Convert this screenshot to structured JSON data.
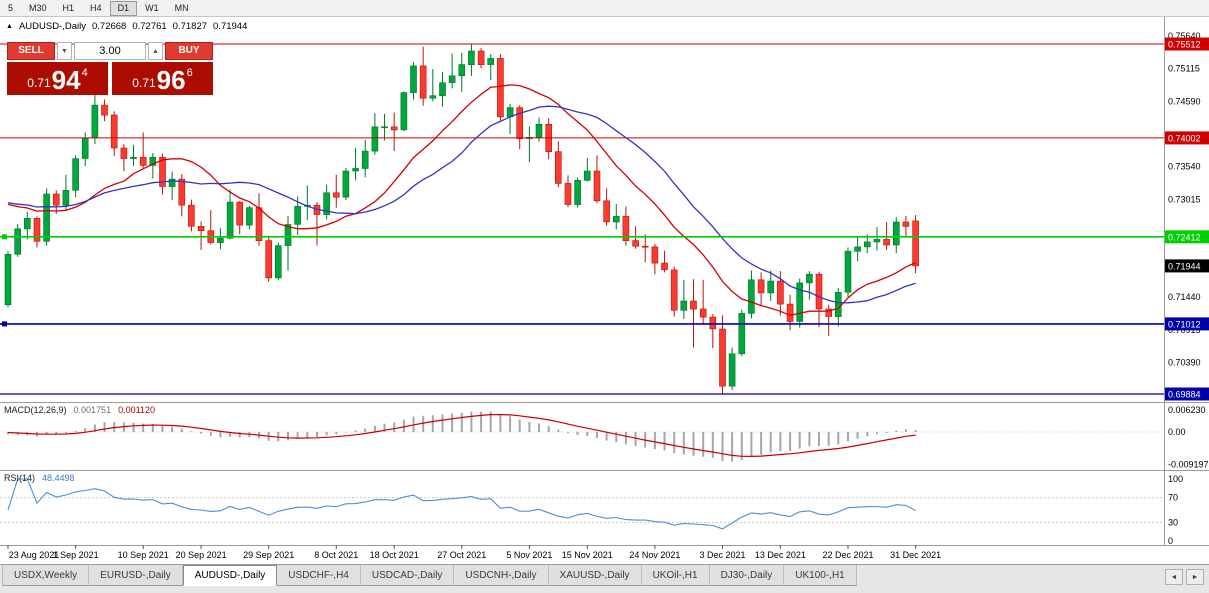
{
  "toolbar": {
    "timeframes": [
      "5",
      "M30",
      "H1",
      "H4",
      "D1",
      "W1",
      "MN"
    ],
    "active": "D1"
  },
  "chart": {
    "collapse_glyph": "▲",
    "symbol_label": "AUDUSD-,Daily",
    "ohlc": {
      "open": "0.72668",
      "high": "0.72761",
      "low": "0.71827",
      "close": "0.71944"
    },
    "y_axis_labels": [
      0.7564,
      0.75115,
      0.7459,
      0.7354,
      0.73015,
      0.7144,
      0.70915,
      0.7039
    ],
    "price_tags": [
      {
        "price": 0.75512,
        "bg": "#d10000",
        "fg": "#ffffff"
      },
      {
        "price": 0.74002,
        "bg": "#d10000",
        "fg": "#ffffff"
      },
      {
        "price": 0.72412,
        "bg": "#00ce00",
        "fg": "#ffffff"
      },
      {
        "price": 0.71944,
        "bg": "#000000",
        "fg": "#ffffff"
      },
      {
        "price": 0.71012,
        "bg": "#0000a8",
        "fg": "#ffffff"
      },
      {
        "price": 0.69884,
        "bg": "#0000a8",
        "fg": "#ffffff"
      }
    ],
    "h_lines": [
      {
        "price": 0.75512,
        "color": "#cc0000",
        "width": 1
      },
      {
        "price": 0.74002,
        "color": "#cc0000",
        "width": 1
      },
      {
        "price": 0.72412,
        "color": "#00ce00",
        "width": 1.6,
        "handle": true
      },
      {
        "price": 0.71012,
        "color": "#0000a8",
        "width": 1.6,
        "handle": true
      },
      {
        "price": 0.69884,
        "color": "#0000a8",
        "width": 1.2
      }
    ],
    "x_ticks": [
      {
        "i": 0,
        "label": "23 Aug 2021"
      },
      {
        "i": 7,
        "label": "1 Sep 2021"
      },
      {
        "i": 14,
        "label": "10 Sep 2021"
      },
      {
        "i": 20,
        "label": "20 Sep 2021"
      },
      {
        "i": 27,
        "label": "29 Sep 2021"
      },
      {
        "i": 34,
        "label": "8 Oct 2021"
      },
      {
        "i": 40,
        "label": "18 Oct 2021"
      },
      {
        "i": 47,
        "label": "27 Oct 2021"
      },
      {
        "i": 54,
        "label": "5 Nov 2021"
      },
      {
        "i": 60,
        "label": "15 Nov 2021"
      },
      {
        "i": 67,
        "label": "24 Nov 2021"
      },
      {
        "i": 74,
        "label": "3 Dec 2021"
      },
      {
        "i": 80,
        "label": "13 Dec 2021"
      },
      {
        "i": 87,
        "label": "22 Dec 2021"
      },
      {
        "i": 94,
        "label": "31 Dec 2021"
      }
    ]
  },
  "trade": {
    "sell_label": "SELL",
    "buy_label": "BUY",
    "volume": "3.00",
    "volume_down_glyph": "▼",
    "volume_up_glyph": "▲",
    "sell_price": {
      "prefix": "0.71",
      "pips": "94",
      "pipette": "4"
    },
    "buy_price": {
      "prefix": "0.71",
      "pips": "96",
      "pipette": "6"
    }
  },
  "indicators": {
    "macd": {
      "label": "MACD(12,26,9)",
      "value_main": "0.001751",
      "value_signal": "0.001120",
      "axis_labels": [
        "0.006230",
        "0.00",
        "-0.009197"
      ],
      "params": [
        12,
        26,
        9
      ]
    },
    "rsi": {
      "label": "RSI(14)",
      "value": "48.4498",
      "axis_labels": [
        100,
        70,
        30,
        0
      ],
      "period": 14,
      "levels": [
        70,
        30
      ]
    },
    "sma_fast_period": 13,
    "sma_slow_period": 21
  },
  "theme": {
    "candle_up": "#00a73c",
    "candle_up_border": "#00762a",
    "candle_down": "#fb3b30",
    "candle_down_border": "#b7150b",
    "ma_fast": "#d40000",
    "ma_slow": "#3434c4",
    "macd_hist": "#a6a6a6",
    "macd_signal": "#cc0000",
    "rsi_line": "#4a90d9",
    "axis_line": "#9a9a9a"
  },
  "tabs": {
    "items": [
      "USDX,Weekly",
      "EURUSD-,Daily",
      "AUDUSD-,Daily",
      "USDCHF-,H4",
      "USDCAD-,Daily",
      "USDCNH-,Daily",
      "XAUUSD-,Daily",
      "UKOil-,H1",
      "DJ30-,Daily",
      "UK100-,H1"
    ],
    "active": "AUDUSD-,Daily",
    "nav_left": "◄",
    "nav_right": "►"
  },
  "chart_data": {
    "type": "candlestick",
    "symbol": "AUDUSD",
    "timeframe": "Daily",
    "y_range": [
      0.6975,
      0.759
    ],
    "columns": [
      "date",
      "open",
      "high",
      "low",
      "close"
    ],
    "candles": [
      [
        "2021.08.23",
        0.7132,
        0.7218,
        0.7128,
        0.7213
      ],
      [
        "2021.08.24",
        0.7213,
        0.7262,
        0.7209,
        0.7254
      ],
      [
        "2021.08.25",
        0.7254,
        0.7281,
        0.7237,
        0.7271
      ],
      [
        "2021.08.26",
        0.7271,
        0.7274,
        0.7224,
        0.7234
      ],
      [
        "2021.08.27",
        0.7234,
        0.7319,
        0.7227,
        0.731
      ],
      [
        "2021.08.30",
        0.731,
        0.7316,
        0.7278,
        0.7292
      ],
      [
        "2021.08.31",
        0.7292,
        0.7341,
        0.7285,
        0.7316
      ],
      [
        "2021.09.01",
        0.7316,
        0.7372,
        0.7305,
        0.7367
      ],
      [
        "2021.09.02",
        0.7367,
        0.7409,
        0.7355,
        0.74
      ],
      [
        "2021.09.03",
        0.74,
        0.7478,
        0.739,
        0.7453
      ],
      [
        "2021.09.06",
        0.7453,
        0.7462,
        0.7427,
        0.7437
      ],
      [
        "2021.09.07",
        0.7437,
        0.7443,
        0.7371,
        0.7384
      ],
      [
        "2021.09.08",
        0.7384,
        0.739,
        0.7347,
        0.7367
      ],
      [
        "2021.09.09",
        0.7367,
        0.7389,
        0.7355,
        0.7369
      ],
      [
        "2021.09.10",
        0.7369,
        0.7409,
        0.7352,
        0.7356
      ],
      [
        "2021.09.13",
        0.7356,
        0.7376,
        0.7335,
        0.7369
      ],
      [
        "2021.09.14",
        0.7369,
        0.7375,
        0.7309,
        0.7322
      ],
      [
        "2021.09.15",
        0.7322,
        0.7346,
        0.73,
        0.7334
      ],
      [
        "2021.09.16",
        0.7334,
        0.7342,
        0.7274,
        0.7292
      ],
      [
        "2021.09.17",
        0.7292,
        0.7301,
        0.725,
        0.7258
      ],
      [
        "2021.09.20",
        0.7258,
        0.7266,
        0.722,
        0.7251
      ],
      [
        "2021.09.21",
        0.7251,
        0.7284,
        0.7229,
        0.7232
      ],
      [
        "2021.09.22",
        0.7232,
        0.7255,
        0.7221,
        0.7239
      ],
      [
        "2021.09.23",
        0.7239,
        0.7317,
        0.7237,
        0.7297
      ],
      [
        "2021.09.24",
        0.7297,
        0.7299,
        0.7245,
        0.726
      ],
      [
        "2021.09.27",
        0.726,
        0.7291,
        0.7253,
        0.7288
      ],
      [
        "2021.09.28",
        0.7288,
        0.7311,
        0.7227,
        0.7235
      ],
      [
        "2021.09.29",
        0.7235,
        0.7243,
        0.7169,
        0.7175
      ],
      [
        "2021.09.30",
        0.7175,
        0.7232,
        0.7171,
        0.7227
      ],
      [
        "2021.10.01",
        0.7227,
        0.7275,
        0.7187,
        0.7261
      ],
      [
        "2021.10.04",
        0.7261,
        0.7306,
        0.7244,
        0.729
      ],
      [
        "2021.10.05",
        0.729,
        0.7324,
        0.7268,
        0.7292
      ],
      [
        "2021.10.06",
        0.7292,
        0.7297,
        0.7227,
        0.7277
      ],
      [
        "2021.10.07",
        0.7277,
        0.7325,
        0.7269,
        0.7312
      ],
      [
        "2021.10.08",
        0.7312,
        0.7341,
        0.7288,
        0.7305
      ],
      [
        "2021.10.11",
        0.7305,
        0.7352,
        0.73,
        0.7347
      ],
      [
        "2021.10.12",
        0.7347,
        0.7384,
        0.7332,
        0.7351
      ],
      [
        "2021.10.13",
        0.7351,
        0.7397,
        0.7337,
        0.7379
      ],
      [
        "2021.10.14",
        0.7379,
        0.744,
        0.7373,
        0.7418
      ],
      [
        "2021.10.15",
        0.7418,
        0.7439,
        0.7396,
        0.7418
      ],
      [
        "2021.10.18",
        0.7418,
        0.7441,
        0.7379,
        0.7413
      ],
      [
        "2021.10.19",
        0.7413,
        0.7475,
        0.7411,
        0.7473
      ],
      [
        "2021.10.20",
        0.7473,
        0.7522,
        0.7462,
        0.7516
      ],
      [
        "2021.10.21",
        0.7516,
        0.7547,
        0.7452,
        0.7464
      ],
      [
        "2021.10.22",
        0.7464,
        0.7511,
        0.7459,
        0.7468
      ],
      [
        "2021.10.25",
        0.7468,
        0.7506,
        0.745,
        0.7489
      ],
      [
        "2021.10.26",
        0.7489,
        0.7536,
        0.748,
        0.75
      ],
      [
        "2021.10.27",
        0.75,
        0.7537,
        0.7474,
        0.7518
      ],
      [
        "2021.10.28",
        0.7518,
        0.7551,
        0.75,
        0.754
      ],
      [
        "2021.10.29",
        0.754,
        0.7545,
        0.7512,
        0.7518
      ],
      [
        "2021.11.01",
        0.7518,
        0.7535,
        0.7493,
        0.7528
      ],
      [
        "2021.11.02",
        0.7528,
        0.7535,
        0.7428,
        0.7434
      ],
      [
        "2021.11.03",
        0.7434,
        0.7455,
        0.7406,
        0.7449
      ],
      [
        "2021.11.04",
        0.7449,
        0.7453,
        0.7382,
        0.7399
      ],
      [
        "2021.11.05",
        0.7399,
        0.7419,
        0.7361,
        0.7401
      ],
      [
        "2021.11.08",
        0.7401,
        0.7433,
        0.7394,
        0.7422
      ],
      [
        "2021.11.09",
        0.7422,
        0.7432,
        0.7366,
        0.7378
      ],
      [
        "2021.11.10",
        0.7378,
        0.7395,
        0.7321,
        0.7327
      ],
      [
        "2021.11.11",
        0.7327,
        0.734,
        0.7289,
        0.7293
      ],
      [
        "2021.11.12",
        0.7293,
        0.7337,
        0.7288,
        0.7332
      ],
      [
        "2021.11.15",
        0.7332,
        0.7368,
        0.733,
        0.7347
      ],
      [
        "2021.11.16",
        0.7347,
        0.7372,
        0.7295,
        0.7299
      ],
      [
        "2021.11.17",
        0.7299,
        0.7319,
        0.7259,
        0.7265
      ],
      [
        "2021.11.18",
        0.7265,
        0.7294,
        0.7253,
        0.7274
      ],
      [
        "2021.11.19",
        0.7274,
        0.729,
        0.7227,
        0.7235
      ],
      [
        "2021.11.22",
        0.7235,
        0.7258,
        0.7222,
        0.7226
      ],
      [
        "2021.11.23",
        0.7226,
        0.7245,
        0.72,
        0.7225
      ],
      [
        "2021.11.24",
        0.7225,
        0.723,
        0.7181,
        0.7199
      ],
      [
        "2021.11.25",
        0.7199,
        0.7219,
        0.7184,
        0.7188
      ],
      [
        "2021.11.26",
        0.7188,
        0.7193,
        0.7113,
        0.7123
      ],
      [
        "2021.11.29",
        0.7123,
        0.7172,
        0.7109,
        0.7138
      ],
      [
        "2021.11.30",
        0.7138,
        0.7173,
        0.7063,
        0.7125
      ],
      [
        "2021.12.01",
        0.7125,
        0.7172,
        0.71,
        0.7112
      ],
      [
        "2021.12.02",
        0.7112,
        0.7117,
        0.7062,
        0.7093
      ],
      [
        "2021.12.03",
        0.7093,
        0.7115,
        0.6988,
        0.7001
      ],
      [
        "2021.12.06",
        0.7001,
        0.7063,
        0.6995,
        0.7053
      ],
      [
        "2021.12.07",
        0.7053,
        0.7124,
        0.7049,
        0.7118
      ],
      [
        "2021.12.08",
        0.7118,
        0.7187,
        0.711,
        0.7172
      ],
      [
        "2021.12.09",
        0.7172,
        0.7184,
        0.713,
        0.7151
      ],
      [
        "2021.12.10",
        0.7151,
        0.7187,
        0.7138,
        0.717
      ],
      [
        "2021.12.13",
        0.717,
        0.7186,
        0.7115,
        0.7133
      ],
      [
        "2021.12.14",
        0.7133,
        0.7148,
        0.7091,
        0.7105
      ],
      [
        "2021.12.15",
        0.7105,
        0.7174,
        0.7095,
        0.7167
      ],
      [
        "2021.12.16",
        0.7167,
        0.7186,
        0.714,
        0.7181
      ],
      [
        "2021.12.17",
        0.7181,
        0.7185,
        0.7096,
        0.7125
      ],
      [
        "2021.12.20",
        0.7125,
        0.7132,
        0.7082,
        0.7113
      ],
      [
        "2021.12.21",
        0.7113,
        0.7159,
        0.7097,
        0.7152
      ],
      [
        "2021.12.22",
        0.7152,
        0.7224,
        0.7144,
        0.7218
      ],
      [
        "2021.12.23",
        0.7218,
        0.7242,
        0.7202,
        0.7225
      ],
      [
        "2021.12.24",
        0.7225,
        0.7245,
        0.7215,
        0.7233
      ],
      [
        "2021.12.27",
        0.7233,
        0.7257,
        0.7219,
        0.7237
      ],
      [
        "2021.12.28",
        0.7237,
        0.7265,
        0.722,
        0.7228
      ],
      [
        "2021.12.29",
        0.7228,
        0.7273,
        0.7215,
        0.7265
      ],
      [
        "2021.12.30",
        0.7265,
        0.7275,
        0.724,
        0.7258
      ],
      [
        "2021.12.31",
        0.72668,
        0.72761,
        0.71827,
        0.71944
      ]
    ]
  }
}
